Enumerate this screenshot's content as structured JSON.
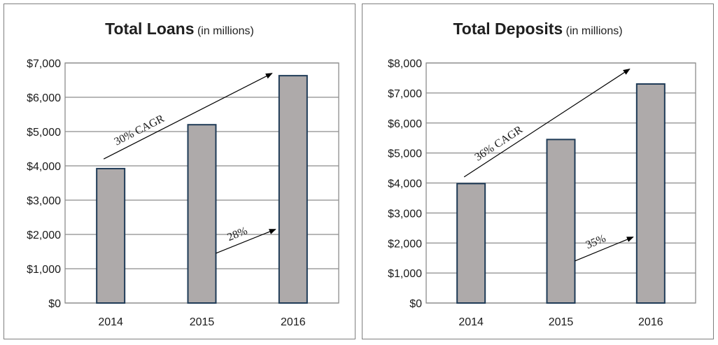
{
  "chart_data": [
    {
      "type": "bar",
      "title": "Total Loans",
      "subtitle": "(in millions)",
      "categories": [
        "2014",
        "2015",
        "2016"
      ],
      "values": [
        3920,
        5200,
        6630
      ],
      "ylim": [
        0,
        7000
      ],
      "yticks": [
        0,
        1000,
        2000,
        3000,
        4000,
        5000,
        6000,
        7000
      ],
      "ytick_labels": [
        "$0",
        "$1,000",
        "$2,000",
        "$3,000",
        "$4,000",
        "$5,000",
        "$6,000",
        "$7,000"
      ],
      "grid": true,
      "bar_color": "#aeaaaa",
      "bar_edge_color": "#1f3b57",
      "annotations": [
        {
          "text": "30% CAGR",
          "from": {
            "x": "2014",
            "y": 4200
          },
          "to": {
            "x": "2016",
            "y": 6700
          }
        },
        {
          "text": "28%",
          "from": {
            "x": "2015",
            "y": 1450
          },
          "to": {
            "x": "2016",
            "y": 2150
          }
        }
      ]
    },
    {
      "type": "bar",
      "title": "Total Deposits",
      "subtitle": "(in millions)",
      "categories": [
        "2014",
        "2015",
        "2016"
      ],
      "values": [
        3980,
        5450,
        7300
      ],
      "ylim": [
        0,
        8000
      ],
      "yticks": [
        0,
        1000,
        2000,
        3000,
        4000,
        5000,
        6000,
        7000,
        8000
      ],
      "ytick_labels": [
        "$0",
        "$1,000",
        "$2,000",
        "$3,000",
        "$4,000",
        "$5,000",
        "$6,000",
        "$7,000",
        "$8,000"
      ],
      "grid": true,
      "bar_color": "#aeaaaa",
      "bar_edge_color": "#1f3b57",
      "annotations": [
        {
          "text": "36% CAGR",
          "from": {
            "x": "2014",
            "y": 4200
          },
          "to": {
            "x": "2016",
            "y": 7800
          }
        },
        {
          "text": "35%",
          "from": {
            "x": "2015",
            "y": 1400
          },
          "to": {
            "x": "2016",
            "y": 2200
          }
        }
      ]
    }
  ]
}
